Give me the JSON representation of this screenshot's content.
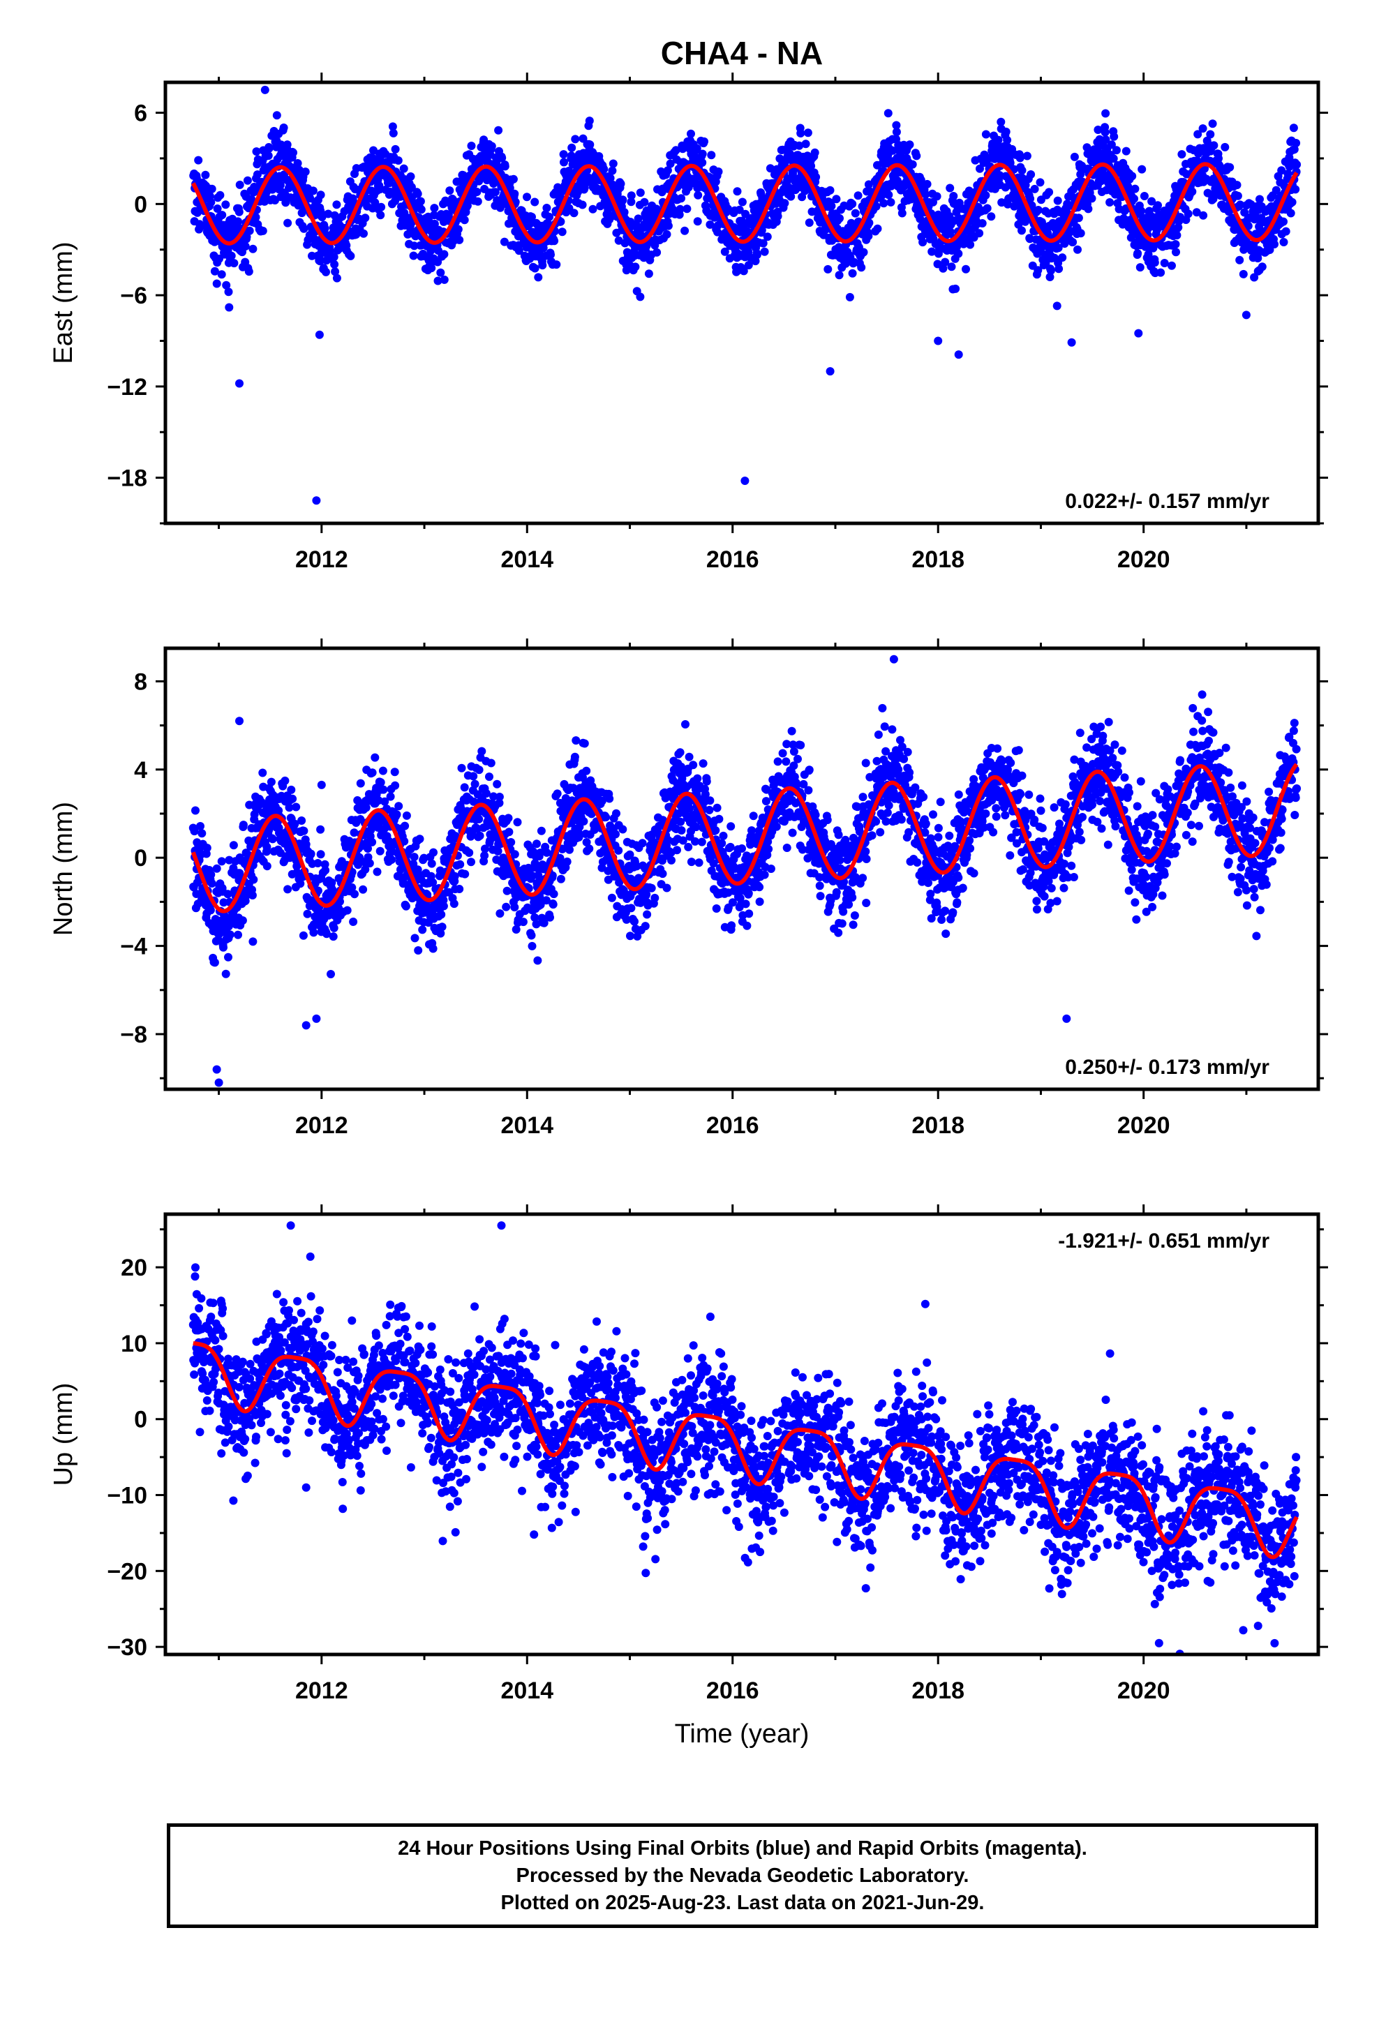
{
  "chart_data": [
    {
      "type": "scatter",
      "title": "CHA4 - NA",
      "ylabel": "East (mm)",
      "ylim": [
        -21,
        8
      ],
      "yticks": [
        6,
        0,
        -6,
        -12,
        -18
      ],
      "ytick_labels": [
        "6",
        "0",
        "−6",
        "−12",
        "−18"
      ],
      "xlim": [
        2010.48,
        2021.7
      ],
      "xticks": [
        2012,
        2014,
        2016,
        2018,
        2020
      ],
      "xtick_labels": [
        "2012",
        "2014",
        "2016",
        "2018",
        "2020"
      ],
      "rate_label": "0.022+/- 0.157 mm/yr",
      "rate_position": "bottom-right",
      "series": [
        {
          "kind": "daily-positions",
          "color": "#0000ff",
          "x_start": 2010.75,
          "x_end": 2021.49,
          "trend_mm_per_yr": 0.022,
          "intercept": -0.1,
          "annual_amp": 2.5,
          "annual_peak": 2011.6,
          "semiannual_amp": 0.0,
          "semiannual_peak": 2011.6,
          "scatter_sd": 1.2,
          "outliers": [
            {
              "x": 2011.1,
              "y": -6.8
            },
            {
              "x": 2011.2,
              "y": -11.8
            },
            {
              "x": 2011.95,
              "y": -19.5
            },
            {
              "x": 2011.98,
              "y": -8.6
            },
            {
              "x": 2016.12,
              "y": -18.2
            },
            {
              "x": 2016.95,
              "y": -11.0
            },
            {
              "x": 2018.0,
              "y": -9.0
            },
            {
              "x": 2018.2,
              "y": -9.9
            },
            {
              "x": 2019.3,
              "y": -9.1
            },
            {
              "x": 2019.95,
              "y": -8.5
            },
            {
              "x": 2021.0,
              "y": -7.3
            },
            {
              "x": 2011.45,
              "y": 7.5
            }
          ]
        },
        {
          "kind": "model-fit",
          "color": "#ff0000",
          "x_start": 2010.75,
          "x_end": 2021.49,
          "trend_mm_per_yr": 0.022,
          "intercept": -0.1,
          "annual_amp": 2.5,
          "annual_peak": 2011.6,
          "semiannual_amp": 0.0,
          "semiannual_peak": 2011.6
        }
      ]
    },
    {
      "type": "scatter",
      "title": "",
      "ylabel": "North (mm)",
      "ylim": [
        -10.5,
        9.5
      ],
      "yticks": [
        8,
        4,
        0,
        -4,
        -8
      ],
      "ytick_labels": [
        "8",
        "4",
        "0",
        "−4",
        "−8"
      ],
      "xlim": [
        2010.48,
        2021.7
      ],
      "xticks": [
        2012,
        2014,
        2016,
        2018,
        2020
      ],
      "xtick_labels": [
        "2012",
        "2014",
        "2016",
        "2018",
        "2020"
      ],
      "rate_label": "0.250+/- 0.173 mm/yr",
      "rate_position": "bottom-right",
      "series": [
        {
          "kind": "daily-positions",
          "color": "#0000ff",
          "x_start": 2010.75,
          "x_end": 2021.49,
          "trend_mm_per_yr": 0.25,
          "intercept": -0.4,
          "annual_amp": 2.1,
          "annual_peak": 2011.55,
          "semiannual_amp": 0.0,
          "semiannual_peak": 2011.55,
          "scatter_sd": 1.1,
          "outliers": [
            {
              "x": 2010.98,
              "y": -9.6
            },
            {
              "x": 2011.0,
              "y": -10.2
            },
            {
              "x": 2011.2,
              "y": 6.2
            },
            {
              "x": 2011.85,
              "y": -7.6
            },
            {
              "x": 2011.95,
              "y": -7.3
            },
            {
              "x": 2012.0,
              "y": 3.3
            },
            {
              "x": 2017.57,
              "y": 9.0
            },
            {
              "x": 2019.25,
              "y": -7.3
            },
            {
              "x": 2020.57,
              "y": 7.4
            }
          ]
        },
        {
          "kind": "model-fit",
          "color": "#ff0000",
          "x_start": 2010.75,
          "x_end": 2021.49,
          "trend_mm_per_yr": 0.25,
          "intercept": -0.4,
          "annual_amp": 2.1,
          "annual_peak": 2011.55,
          "semiannual_amp": 0.0,
          "semiannual_peak": 2011.55
        }
      ]
    },
    {
      "type": "scatter",
      "title": "",
      "ylabel": "Up (mm)",
      "xlabel": "Time (year)",
      "ylim": [
        -31,
        27
      ],
      "yticks": [
        20,
        10,
        0,
        -10,
        -20,
        -30
      ],
      "ytick_labels": [
        "20",
        "10",
        "0",
        "−10",
        "−20",
        "−30"
      ],
      "xlim": [
        2010.48,
        2021.7
      ],
      "xticks": [
        2012,
        2014,
        2016,
        2018,
        2020
      ],
      "xtick_labels": [
        "2012",
        "2014",
        "2016",
        "2018",
        "2020"
      ],
      "rate_label": "-1.921+/- 0.651 mm/yr",
      "rate_position": "top-right",
      "series": [
        {
          "kind": "daily-positions",
          "color": "#0000ff",
          "x_start": 2010.75,
          "x_end": 2021.49,
          "trend_mm_per_yr": -1.921,
          "intercept": 7.0,
          "annual_amp": 4.0,
          "annual_peak": 2011.75,
          "semiannual_amp": 1.0,
          "semiannual_peak": 2011.0,
          "scatter_sd": 4.3,
          "outliers": [
            {
              "x": 2011.85,
              "y": -9.0
            },
            {
              "x": 2011.7,
              "y": 25.5
            },
            {
              "x": 2013.75,
              "y": 25.5
            },
            {
              "x": 2020.15,
              "y": -29.5
            },
            {
              "x": 2020.97,
              "y": -27.8
            }
          ]
        },
        {
          "kind": "model-fit",
          "color": "#ff0000",
          "x_start": 2010.75,
          "x_end": 2021.49,
          "trend_mm_per_yr": -1.921,
          "intercept": 7.0,
          "annual_amp": 4.0,
          "annual_peak": 2011.75,
          "semiannual_amp": 1.0,
          "semiannual_peak": 2011.0
        }
      ]
    }
  ],
  "caption": {
    "lines": [
      "24 Hour Positions Using Final Orbits (blue) and Rapid Orbits (magenta).",
      "Processed by the Nevada Geodetic Laboratory.",
      "Plotted on 2025-Aug-23. Last data on 2021-Jun-29."
    ]
  },
  "colors": {
    "positions": "#0000ff",
    "fit": "#ff0000",
    "frame": "#000000"
  }
}
